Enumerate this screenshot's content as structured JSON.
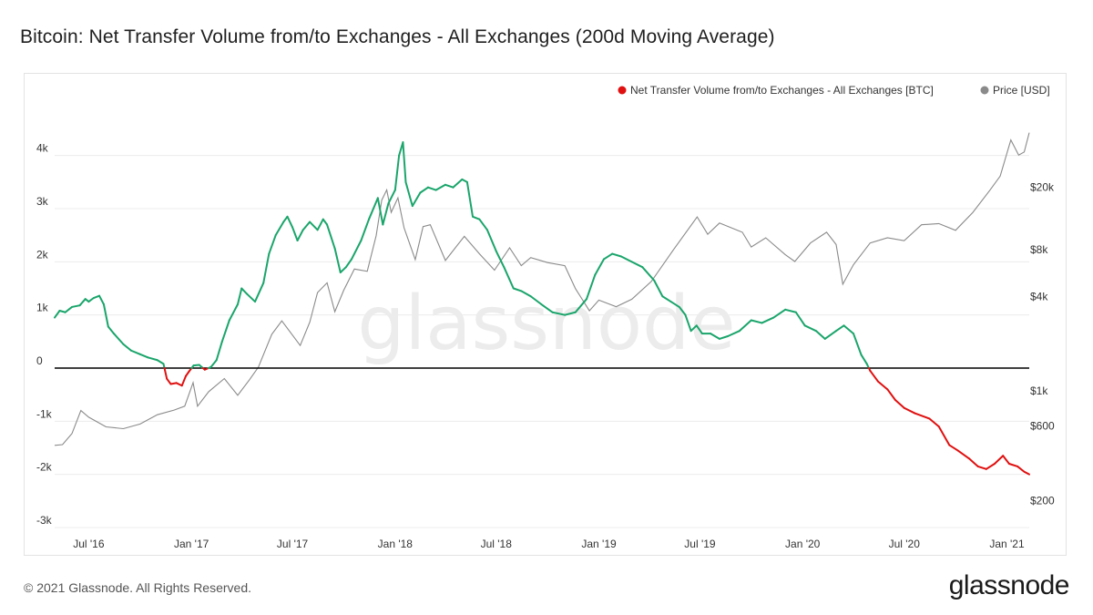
{
  "header": {
    "title": "Bitcoin: Net Transfer Volume from/to Exchanges - All Exchanges (200d Moving Average)"
  },
  "footer": {
    "copyright": "© 2021 Glassnode. All Rights Reserved.",
    "brand": "glassnode"
  },
  "watermark": "glassnode",
  "colors": {
    "positive": "#1aa56b",
    "negative": "#e01010",
    "price": "#8a8a8a",
    "zero_line": "#000000"
  },
  "chart_data": {
    "type": "line",
    "title": "Bitcoin: Net Transfer Volume from/to Exchanges - All Exchanges (200d Moving Average)",
    "legend": {
      "placement": "top-right",
      "entries": [
        {
          "name": "Net Transfer Volume from/to Exchanges - All Exchanges [BTC]",
          "color": "#e01010"
        },
        {
          "name": "Price [USD]",
          "color": "#8a8a8a"
        }
      ]
    },
    "x_ticks": [
      "Jul '16",
      "Jan '17",
      "Jul '17",
      "Jan '18",
      "Jul '18",
      "Jan '19",
      "Jul '19",
      "Jan '20",
      "Jul '20",
      "Jan '21"
    ],
    "y_left_ticks": [
      {
        "label": "4k",
        "value": 4000
      },
      {
        "label": "3k",
        "value": 3000
      },
      {
        "label": "2k",
        "value": 2000
      },
      {
        "label": "1k",
        "value": 1000
      },
      {
        "label": "0",
        "value": 0
      },
      {
        "label": "-1k",
        "value": -1000
      },
      {
        "label": "-2k",
        "value": -2000
      },
      {
        "label": "-3k",
        "value": -3000
      }
    ],
    "y_right_ticks": [
      {
        "label": "$20k",
        "value": 20000
      },
      {
        "label": "$8k",
        "value": 8000
      },
      {
        "label": "$4k",
        "value": 4000
      },
      {
        "label": "$1k",
        "value": 1000
      },
      {
        "label": "$600",
        "value": 600
      },
      {
        "label": "$200",
        "value": 200
      }
    ],
    "ylim_left": [
      -3000,
      5000
    ],
    "ylim_right": [
      200,
      40000
    ],
    "y_right_scale": "log",
    "grid": "horizontal",
    "x_range": [
      "2016-05-01",
      "2021-02-10"
    ],
    "series": [
      {
        "name": "Net Transfer Volume from/to Exchanges - All Exchanges [BTC]",
        "axis": "left",
        "points": [
          [
            "2016-05-01",
            950
          ],
          [
            "2016-05-10",
            1080
          ],
          [
            "2016-05-20",
            1050
          ],
          [
            "2016-06-01",
            1150
          ],
          [
            "2016-06-15",
            1180
          ],
          [
            "2016-06-25",
            1300
          ],
          [
            "2016-07-01",
            1250
          ],
          [
            "2016-07-10",
            1320
          ],
          [
            "2016-07-20",
            1360
          ],
          [
            "2016-07-28",
            1200
          ],
          [
            "2016-08-05",
            780
          ],
          [
            "2016-08-15",
            650
          ],
          [
            "2016-09-01",
            450
          ],
          [
            "2016-09-15",
            330
          ],
          [
            "2016-10-01",
            260
          ],
          [
            "2016-10-15",
            200
          ],
          [
            "2016-11-01",
            150
          ],
          [
            "2016-11-12",
            80
          ],
          [
            "2016-11-18",
            -200
          ],
          [
            "2016-11-25",
            -300
          ],
          [
            "2016-12-05",
            -280
          ],
          [
            "2016-12-15",
            -330
          ],
          [
            "2016-12-22",
            -150
          ],
          [
            "2016-12-28",
            -60
          ],
          [
            "2017-01-05",
            50
          ],
          [
            "2017-01-15",
            60
          ],
          [
            "2017-01-25",
            -30
          ],
          [
            "2017-02-05",
            20
          ],
          [
            "2017-02-15",
            150
          ],
          [
            "2017-02-25",
            500
          ],
          [
            "2017-03-10",
            900
          ],
          [
            "2017-03-25",
            1200
          ],
          [
            "2017-04-01",
            1500
          ],
          [
            "2017-04-10",
            1400
          ],
          [
            "2017-04-25",
            1250
          ],
          [
            "2017-05-10",
            1600
          ],
          [
            "2017-05-20",
            2150
          ],
          [
            "2017-06-01",
            2500
          ],
          [
            "2017-06-15",
            2750
          ],
          [
            "2017-06-22",
            2850
          ],
          [
            "2017-07-01",
            2650
          ],
          [
            "2017-07-10",
            2400
          ],
          [
            "2017-07-20",
            2600
          ],
          [
            "2017-08-01",
            2750
          ],
          [
            "2017-08-15",
            2600
          ],
          [
            "2017-08-25",
            2800
          ],
          [
            "2017-09-01",
            2700
          ],
          [
            "2017-09-15",
            2250
          ],
          [
            "2017-09-25",
            1800
          ],
          [
            "2017-10-05",
            1900
          ],
          [
            "2017-10-15",
            2050
          ],
          [
            "2017-11-01",
            2400
          ],
          [
            "2017-11-15",
            2800
          ],
          [
            "2017-12-01",
            3200
          ],
          [
            "2017-12-10",
            2700
          ],
          [
            "2017-12-20",
            3100
          ],
          [
            "2018-01-01",
            3350
          ],
          [
            "2018-01-08",
            4000
          ],
          [
            "2018-01-15",
            4250
          ],
          [
            "2018-01-20",
            3500
          ],
          [
            "2018-02-01",
            3050
          ],
          [
            "2018-02-15",
            3300
          ],
          [
            "2018-03-01",
            3400
          ],
          [
            "2018-03-15",
            3350
          ],
          [
            "2018-04-01",
            3450
          ],
          [
            "2018-04-15",
            3400
          ],
          [
            "2018-05-01",
            3550
          ],
          [
            "2018-05-10",
            3500
          ],
          [
            "2018-05-20",
            2850
          ],
          [
            "2018-06-01",
            2800
          ],
          [
            "2018-06-15",
            2600
          ],
          [
            "2018-07-01",
            2200
          ],
          [
            "2018-07-15",
            1900
          ],
          [
            "2018-08-01",
            1500
          ],
          [
            "2018-08-15",
            1450
          ],
          [
            "2018-09-01",
            1350
          ],
          [
            "2018-09-20",
            1200
          ],
          [
            "2018-10-10",
            1050
          ],
          [
            "2018-11-01",
            1000
          ],
          [
            "2018-11-20",
            1050
          ],
          [
            "2018-12-10",
            1300
          ],
          [
            "2018-12-25",
            1750
          ],
          [
            "2019-01-10",
            2050
          ],
          [
            "2019-01-25",
            2150
          ],
          [
            "2019-02-10",
            2100
          ],
          [
            "2019-03-01",
            2000
          ],
          [
            "2019-03-20",
            1900
          ],
          [
            "2019-04-10",
            1650
          ],
          [
            "2019-04-25",
            1350
          ],
          [
            "2019-05-10",
            1250
          ],
          [
            "2019-05-25",
            1150
          ],
          [
            "2019-06-05",
            1000
          ],
          [
            "2019-06-15",
            700
          ],
          [
            "2019-06-25",
            800
          ],
          [
            "2019-07-05",
            650
          ],
          [
            "2019-07-20",
            650
          ],
          [
            "2019-08-05",
            550
          ],
          [
            "2019-08-20",
            600
          ],
          [
            "2019-09-10",
            700
          ],
          [
            "2019-10-01",
            900
          ],
          [
            "2019-10-20",
            850
          ],
          [
            "2019-11-10",
            950
          ],
          [
            "2019-12-01",
            1100
          ],
          [
            "2019-12-20",
            1050
          ],
          [
            "2020-01-05",
            800
          ],
          [
            "2020-01-25",
            700
          ],
          [
            "2020-02-10",
            550
          ],
          [
            "2020-03-01",
            700
          ],
          [
            "2020-03-15",
            800
          ],
          [
            "2020-04-01",
            650
          ],
          [
            "2020-04-15",
            250
          ],
          [
            "2020-04-25",
            80
          ],
          [
            "2020-05-01",
            -50
          ],
          [
            "2020-05-15",
            -250
          ],
          [
            "2020-06-01",
            -400
          ],
          [
            "2020-06-15",
            -600
          ],
          [
            "2020-07-01",
            -750
          ],
          [
            "2020-07-20",
            -850
          ],
          [
            "2020-08-15",
            -950
          ],
          [
            "2020-09-01",
            -1100
          ],
          [
            "2020-09-20",
            -1450
          ],
          [
            "2020-10-05",
            -1550
          ],
          [
            "2020-10-25",
            -1700
          ],
          [
            "2020-11-10",
            -1850
          ],
          [
            "2020-11-25",
            -1900
          ],
          [
            "2020-12-10",
            -1800
          ],
          [
            "2020-12-25",
            -1650
          ],
          [
            "2021-01-05",
            -1800
          ],
          [
            "2021-01-20",
            -1850
          ],
          [
            "2021-02-01",
            -1950
          ],
          [
            "2021-02-10",
            -2000
          ]
        ]
      },
      {
        "name": "Price [USD]",
        "axis": "right",
        "points": [
          [
            "2016-05-01",
            450
          ],
          [
            "2016-05-15",
            455
          ],
          [
            "2016-06-01",
            535
          ],
          [
            "2016-06-17",
            750
          ],
          [
            "2016-07-01",
            680
          ],
          [
            "2016-08-01",
            590
          ],
          [
            "2016-09-01",
            575
          ],
          [
            "2016-10-01",
            615
          ],
          [
            "2016-11-01",
            705
          ],
          [
            "2016-12-01",
            755
          ],
          [
            "2016-12-20",
            800
          ],
          [
            "2017-01-04",
            1130
          ],
          [
            "2017-01-12",
            800
          ],
          [
            "2017-02-01",
            990
          ],
          [
            "2017-03-01",
            1200
          ],
          [
            "2017-03-25",
            940
          ],
          [
            "2017-04-15",
            1180
          ],
          [
            "2017-05-01",
            1420
          ],
          [
            "2017-05-25",
            2300
          ],
          [
            "2017-06-12",
            2800
          ],
          [
            "2017-07-15",
            1950
          ],
          [
            "2017-08-01",
            2750
          ],
          [
            "2017-08-15",
            4250
          ],
          [
            "2017-09-01",
            4900
          ],
          [
            "2017-09-15",
            3200
          ],
          [
            "2017-10-01",
            4400
          ],
          [
            "2017-10-20",
            6000
          ],
          [
            "2017-11-12",
            5800
          ],
          [
            "2017-11-28",
            9800
          ],
          [
            "2017-12-08",
            16500
          ],
          [
            "2017-12-17",
            19200
          ],
          [
            "2017-12-25",
            13800
          ],
          [
            "2018-01-06",
            17100
          ],
          [
            "2018-01-17",
            11000
          ],
          [
            "2018-02-06",
            6900
          ],
          [
            "2018-02-20",
            11200
          ],
          [
            "2018-03-05",
            11500
          ],
          [
            "2018-04-01",
            6800
          ],
          [
            "2018-05-05",
            9700
          ],
          [
            "2018-06-01",
            7500
          ],
          [
            "2018-06-28",
            5900
          ],
          [
            "2018-07-25",
            8200
          ],
          [
            "2018-08-15",
            6300
          ],
          [
            "2018-09-01",
            7100
          ],
          [
            "2018-10-01",
            6600
          ],
          [
            "2018-11-01",
            6300
          ],
          [
            "2018-11-20",
            4500
          ],
          [
            "2018-12-15",
            3250
          ],
          [
            "2019-01-01",
            3800
          ],
          [
            "2019-02-01",
            3450
          ],
          [
            "2019-03-01",
            3850
          ],
          [
            "2019-04-05",
            5000
          ],
          [
            "2019-05-15",
            8000
          ],
          [
            "2019-06-26",
            12900
          ],
          [
            "2019-07-15",
            10000
          ],
          [
            "2019-08-05",
            11800
          ],
          [
            "2019-09-15",
            10300
          ],
          [
            "2019-10-01",
            8300
          ],
          [
            "2019-10-27",
            9500
          ],
          [
            "2019-12-01",
            7400
          ],
          [
            "2019-12-18",
            6700
          ],
          [
            "2020-01-15",
            8800
          ],
          [
            "2020-02-13",
            10300
          ],
          [
            "2020-03-01",
            8600
          ],
          [
            "2020-03-13",
            4800
          ],
          [
            "2020-04-01",
            6400
          ],
          [
            "2020-05-01",
            8800
          ],
          [
            "2020-06-01",
            9500
          ],
          [
            "2020-07-01",
            9100
          ],
          [
            "2020-08-01",
            11500
          ],
          [
            "2020-09-01",
            11700
          ],
          [
            "2020-10-01",
            10600
          ],
          [
            "2020-11-01",
            13800
          ],
          [
            "2020-12-01",
            19000
          ],
          [
            "2020-12-20",
            23500
          ],
          [
            "2021-01-08",
            40000
          ],
          [
            "2021-01-22",
            32000
          ],
          [
            "2021-02-01",
            33500
          ],
          [
            "2021-02-10",
            44500
          ]
        ]
      }
    ]
  }
}
